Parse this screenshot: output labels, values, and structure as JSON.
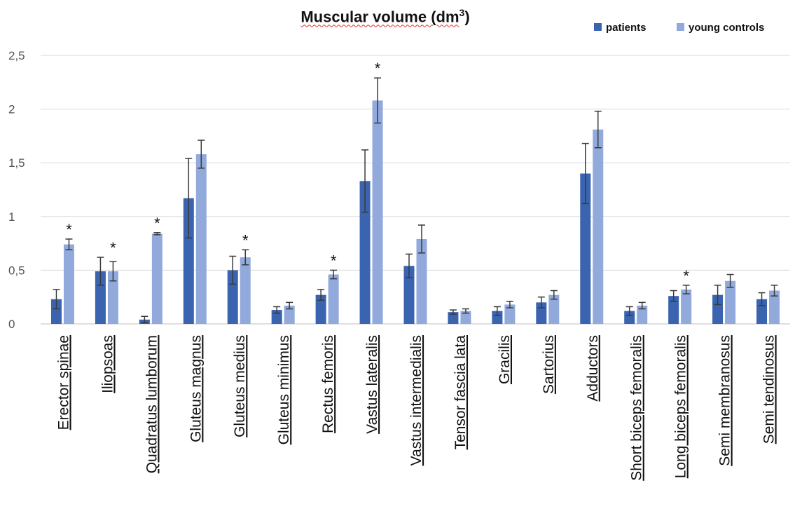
{
  "chart_data": {
    "type": "bar",
    "title": "Muscular volume (dm",
    "title_superscript": "3",
    "title_suffix": ")",
    "legend_position": "top-right",
    "grid": true,
    "ylim": [
      0,
      2.5
    ],
    "yticks": [
      "0",
      "0,5",
      "1",
      "1,5",
      "2",
      "2,5"
    ],
    "ytick_values": [
      0,
      0.5,
      1,
      1.5,
      2,
      2.5
    ],
    "categories": [
      "Erector spinae",
      "Iliopsoas",
      "Quadratus lumborum",
      "Gluteus magnus",
      "Gluteus medius",
      "Gluteus minimus",
      "Rectus femoris",
      "Vastus lateralis",
      "Vastus intermedialis",
      "Tensor fascia lata",
      "Gracilis",
      "Sartorius",
      "Adductors",
      "Short biceps femoralis",
      "Long biceps femoralis",
      "Semi membranosus",
      "Semi tendinosus"
    ],
    "series": [
      {
        "name": "patients",
        "color": "#3a64b0",
        "values": [
          0.23,
          0.49,
          0.04,
          1.17,
          0.5,
          0.13,
          0.27,
          1.33,
          0.54,
          0.11,
          0.12,
          0.2,
          1.4,
          0.12,
          0.26,
          0.27,
          0.23
        ],
        "errors": [
          0.09,
          0.13,
          0.03,
          0.37,
          0.13,
          0.03,
          0.05,
          0.29,
          0.11,
          0.02,
          0.04,
          0.05,
          0.28,
          0.04,
          0.05,
          0.09,
          0.06
        ]
      },
      {
        "name": "young controls",
        "color": "#92a9dc",
        "values": [
          0.74,
          0.49,
          0.84,
          1.58,
          0.62,
          0.17,
          0.46,
          2.08,
          0.79,
          0.12,
          0.18,
          0.27,
          1.81,
          0.17,
          0.32,
          0.4,
          0.31
        ],
        "errors": [
          0.05,
          0.09,
          0.01,
          0.13,
          0.07,
          0.03,
          0.04,
          0.21,
          0.13,
          0.02,
          0.03,
          0.04,
          0.17,
          0.03,
          0.04,
          0.06,
          0.05
        ]
      }
    ],
    "significance_marker": "*",
    "significant_categories": [
      "Erector spinae",
      "Iliopsoas",
      "Quadratus lumborum",
      "Gluteus medius",
      "Rectus femoris",
      "Vastus lateralis",
      "Long biceps femoralis"
    ]
  }
}
